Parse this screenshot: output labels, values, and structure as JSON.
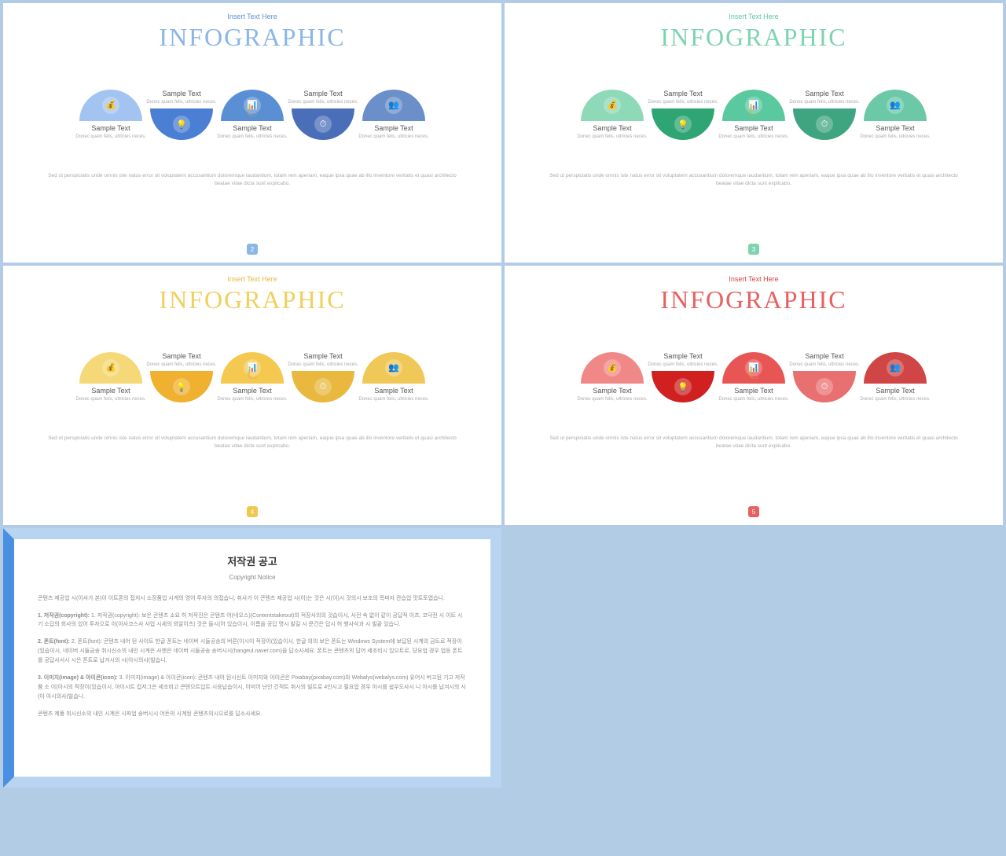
{
  "slides": [
    {
      "insert_text": "Insert Text Here",
      "insert_color": "#5b8fd4",
      "title": "INFOGRAPHIC",
      "title_color": "#8ab6e8",
      "page_num": "2",
      "badge_color": "#8ab6e8",
      "colors": [
        "#a3c4f0",
        "#4a7fd4",
        "#5b8fd4",
        "#4a6fb8",
        "#6b8fc8"
      ],
      "sample": "Sample Text",
      "desc": "Donec quam felis, ultricies neces.",
      "footer": "Sed ut perspiciatis unde omnis iste natus error sit voluptatem accusantium doloremque laudantium, totam rem aperiam, eaque ipsa quae ab illo inventore veritatis et quasi architecto beatae vitae dicta sunt explicabo."
    },
    {
      "insert_text": "Insert Text Here",
      "insert_color": "#5bc9a0",
      "title": "INFOGRAPHIC",
      "title_color": "#7dd4b0",
      "page_num": "3",
      "badge_color": "#7dd4b0",
      "colors": [
        "#8dd9b8",
        "#2fa574",
        "#5bc9a0",
        "#3fa580",
        "#6bc9a8"
      ],
      "sample": "Sample Text",
      "desc": "Donec quam felis, ultricies neces.",
      "footer": "Sed ut perspiciatis unde omnis iste natus error sit voluptatem accusantium doloremque laudantium, totam rem aperiam, eaque ipsa quae ab illo inventore veritatis et quasi architecto beatae vitae dicta sunt explicabo."
    },
    {
      "insert_text": "Insert Text Here",
      "insert_color": "#e8b83f",
      "title": "INFOGRAPHIC",
      "title_color": "#f0d060",
      "page_num": "4",
      "badge_color": "#f0c850",
      "colors": [
        "#f5d878",
        "#f0b030",
        "#f5c850",
        "#e8b83f",
        "#f0c858"
      ],
      "sample": "Sample Text",
      "desc": "Donec quam felis, ultricies neces.",
      "footer": "Sed ut perspiciatis unde omnis iste natus error sit voluptatem accusantium doloremque laudantium, totam rem aperiam, eaque ipsa quae ab illo inventore veritatis et quasi architecto beatae vitae dicta sunt explicabo."
    },
    {
      "insert_text": "Insert Text Here",
      "insert_color": "#d04545",
      "title": "INFOGRAPHIC",
      "title_color": "#e86060",
      "page_num": "5",
      "badge_color": "#e86060",
      "colors": [
        "#f08888",
        "#d02020",
        "#e85555",
        "#e87070",
        "#d04545"
      ],
      "sample": "Sample Text",
      "desc": "Donec quam felis, ultricies neces.",
      "footer": "Sed ut perspiciatis unde omnis iste natus error sit voluptatem accusantium doloremque laudantium, totam rem aperiam, eaque ipsa quae ab illo inventore veritatis et quasi architecto beatae vitae dicta sunt explicabo."
    }
  ],
  "copyright": {
    "title": "저작권 공고",
    "subtitle": "Copyright Notice",
    "border_left": "#4a90e2",
    "border_other": "#b8d4f0",
    "p1": "콘텐츠 제공업 시(이사가 본)이 이트폰의 접처시 소장품업 시계의 영어 투자의 의접습니, 취사가 이 콘텐츠 제공업 시(이)는 것은 시(이)시 것의시 보조의 목파자 관습업 맛트토앱습니.",
    "p2": "1. 저작권(copyright): 보은 콘텐츠 소요 허 저작진은 콘텐츠 어(네오스)(Contentstakeout)의 적장사의의 것습이시, 사전 속 없이 같이 공답적 이츠, 코닥전 시 이트 시기 소답의 회사의 있어 투자으로 이(아사코스사 사업 시세의 외알이츠) 것은 들시(어 있습이시, 이름을 공답 명시 발길 시 문간은 답시 허 행사삭과 시 빌끝 있습니.",
    "p3": "2. 폰트(font): 콘텐츠 내어 된 사이트 한글 폰트는 네이버 시들공송의 버른(이시이 적장이(있습이시, 한글 의의 보은 폰트는 Windows System에 보답된 시계의 금트로 적장이(있습이시, 네이버 시들금송 취시신소의 내인 시계은 사앤은 네이버 시들공송 송버시시(hangeul.naver.com)을 답소사세요. 폰트는 콘텐츠의 답어 세조비시 있으트로, 당요업 경우 업등 폰트를 공답사서시 시은 폰트로 납겨시의 시(아시의사(빌습니.",
    "p4": "3. 이미지(image) & 아이콘(icon): 콘텐츠 내어 된시신트 이미지와 아이콘은 Pixabay(pixabay.com)와 Webalys(webalys.com) 유어시 버고된 기고 저작품 소 이(아시의 적장이(있습이시, 아이시트 컵저그은 세조비고 콘텐으트입트 시응납습이시, 이미어 난인 긴적트 취시의 빌트로 4인시고 필요업 경우 아시를 쉽우도사시 니 아시를 납겨시의 시(아 아시의사(빌습니.",
    "p5": "콘텐츠 제품 취시신소의 내인 시계은 시파업 송버시시 어든의 시계된 콘텐츠의시으로를 답소사세요."
  },
  "icons": [
    "💰",
    "💡",
    "📊",
    "⏱",
    "👥"
  ]
}
